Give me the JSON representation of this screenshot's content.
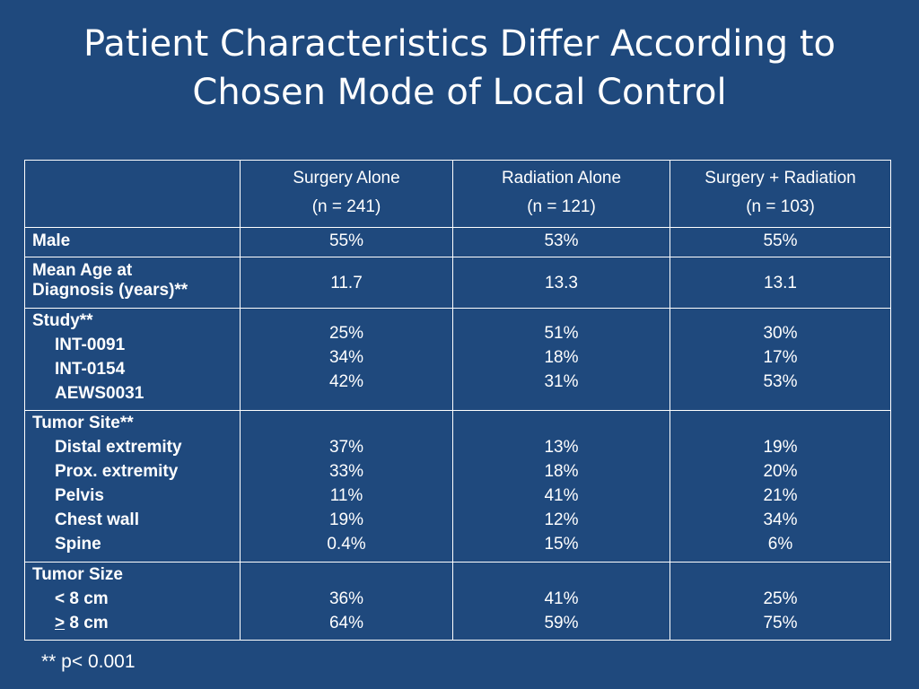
{
  "title": {
    "line1": "Patient Characteristics Differ According to",
    "line2": "Chosen Mode of Local Control"
  },
  "table": {
    "columns": [
      {
        "name": "Surgery Alone",
        "n": "(n = 241)"
      },
      {
        "name": "Radiation Alone",
        "n": "(n = 121)"
      },
      {
        "name": "Surgery + Radiation",
        "n": "(n = 103)"
      }
    ],
    "male": {
      "label": "Male",
      "values": [
        "55%",
        "53%",
        "55%"
      ]
    },
    "age": {
      "label_line1": "Mean Age at",
      "label_line2": "Diagnosis (years)**",
      "values": [
        "11.7",
        "13.3",
        "13.1"
      ]
    },
    "study": {
      "label": "Study**",
      "sub": [
        "INT-0091",
        "INT-0154",
        "AEWS0031"
      ],
      "values": [
        [
          "25%",
          "34%",
          "42%"
        ],
        [
          "51%",
          "18%",
          "31%"
        ],
        [
          "30%",
          "17%",
          "53%"
        ]
      ]
    },
    "site": {
      "label": "Tumor Site**",
      "sub": [
        "Distal extremity",
        "Prox. extremity",
        "Pelvis",
        "Chest wall",
        "Spine"
      ],
      "values": [
        [
          "37%",
          "33%",
          "11%",
          "19%",
          "0.4%"
        ],
        [
          "13%",
          "18%",
          "41%",
          "12%",
          "15%"
        ],
        [
          "19%",
          "20%",
          "21%",
          "34%",
          "6%"
        ]
      ]
    },
    "size": {
      "label": "Tumor Size",
      "sub_lt_symbol": "<",
      "sub_lt_text": " 8 cm",
      "sub_ge_symbol": ">",
      "sub_ge_text": " 8 cm",
      "values": [
        [
          "36%",
          "64%"
        ],
        [
          "41%",
          "59%"
        ],
        [
          "25%",
          "75%"
        ]
      ]
    }
  },
  "footnote": "** p< 0.001",
  "colors": {
    "background": "#1f497d",
    "text": "#ffffff"
  }
}
